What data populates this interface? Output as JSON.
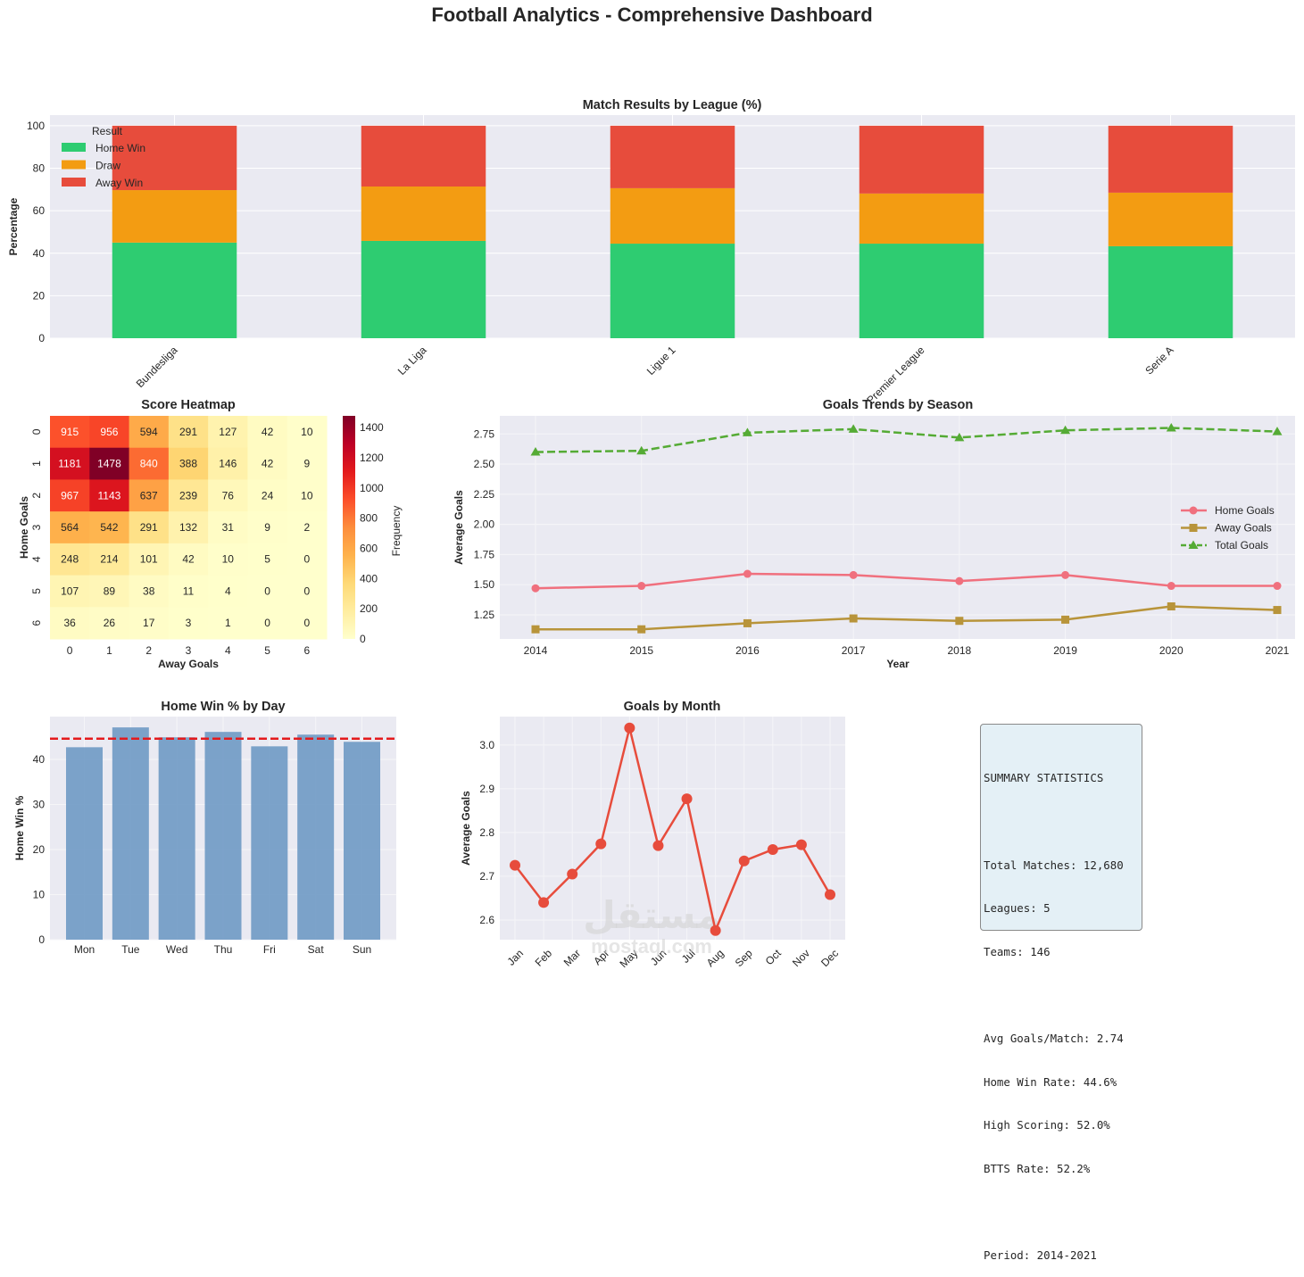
{
  "suptitle": "Football Analytics - Comprehensive Dashboard",
  "chart_data": [
    {
      "id": "league_results",
      "type": "bar",
      "stacked": true,
      "title": "Match Results by League (%)",
      "xlabel": "",
      "ylabel": "Percentage",
      "ylim": [
        0,
        105
      ],
      "yticks": [
        0,
        20,
        40,
        60,
        80,
        100
      ],
      "categories": [
        "Bundesliga",
        "La Liga",
        "Ligue 1",
        "Premier League",
        "Serie A"
      ],
      "legend_title": "Result",
      "legend_position": "top-left",
      "grid": true,
      "series": [
        {
          "name": "Home Win",
          "color": "#2ecc71",
          "values": [
            45.0,
            45.8,
            44.5,
            44.5,
            43.3
          ]
        },
        {
          "name": "Draw",
          "color": "#f39c12",
          "values": [
            24.7,
            25.6,
            26.1,
            23.6,
            25.2
          ]
        },
        {
          "name": "Away Win",
          "color": "#e74c3c",
          "values": [
            30.3,
            28.6,
            29.4,
            31.9,
            31.5
          ]
        }
      ]
    },
    {
      "id": "score_heatmap",
      "type": "heatmap",
      "title": "Score Heatmap",
      "xlabel": "Away Goals",
      "ylabel": "Home Goals",
      "x": [
        0,
        1,
        2,
        3,
        4,
        5,
        6
      ],
      "y": [
        0,
        1,
        2,
        3,
        4,
        5,
        6
      ],
      "colorbar_label": "Frequency",
      "colorbar_ticks": [
        0,
        200,
        400,
        600,
        800,
        1000,
        1200,
        1400
      ],
      "vmin": 0,
      "vmax": 1478,
      "colormap": "YlOrRd",
      "values": [
        [
          915,
          956,
          594,
          291,
          127,
          42,
          10
        ],
        [
          1181,
          1478,
          840,
          388,
          146,
          42,
          9
        ],
        [
          967,
          1143,
          637,
          239,
          76,
          24,
          10
        ],
        [
          564,
          542,
          291,
          132,
          31,
          9,
          2
        ],
        [
          248,
          214,
          101,
          42,
          10,
          5,
          0
        ],
        [
          107,
          89,
          38,
          11,
          4,
          0,
          0
        ],
        [
          36,
          26,
          17,
          3,
          1,
          0,
          0
        ]
      ]
    },
    {
      "id": "goals_trends",
      "type": "line",
      "title": "Goals Trends by Season",
      "xlabel": "Year",
      "ylabel": "Average Goals",
      "x": [
        2014,
        2015,
        2016,
        2017,
        2018,
        2019,
        2020,
        2021
      ],
      "ylim": [
        1.05,
        2.9
      ],
      "yticks": [
        1.25,
        1.5,
        1.75,
        2.0,
        2.25,
        2.5,
        2.75
      ],
      "ytick_labels": [
        "1.25",
        "1.50",
        "1.75",
        "2.00",
        "2.25",
        "2.50",
        "2.75"
      ],
      "legend_position": "center-right",
      "grid": true,
      "series": [
        {
          "name": "Home Goals",
          "color": "#f0707e",
          "marker": "circle",
          "dash": "solid",
          "values": [
            1.47,
            1.49,
            1.59,
            1.58,
            1.53,
            1.58,
            1.49,
            1.49
          ]
        },
        {
          "name": "Away Goals",
          "color": "#b8943a",
          "marker": "square",
          "dash": "solid",
          "values": [
            1.13,
            1.13,
            1.18,
            1.22,
            1.2,
            1.21,
            1.32,
            1.29
          ]
        },
        {
          "name": "Total Goals",
          "color": "#55ab35",
          "marker": "triangle",
          "dash": "dashed",
          "values": [
            2.6,
            2.61,
            2.76,
            2.79,
            2.72,
            2.78,
            2.8,
            2.77
          ]
        }
      ]
    },
    {
      "id": "home_win_by_day",
      "type": "bar",
      "title": "Home Win % by Day",
      "xlabel": "",
      "ylabel": "Home Win %",
      "categories": [
        "Mon",
        "Tue",
        "Wed",
        "Thu",
        "Fri",
        "Sat",
        "Sun"
      ],
      "values": [
        42.7,
        47.1,
        44.9,
        46.1,
        42.9,
        45.5,
        43.9
      ],
      "color": "#6f9ac4",
      "reference_line": {
        "value": 44.6,
        "color": "#e41a1c",
        "style": "dashed"
      },
      "ylim": [
        0,
        49.5
      ],
      "yticks": [
        0,
        10,
        20,
        30,
        40
      ],
      "grid": true
    },
    {
      "id": "goals_by_month",
      "type": "line",
      "title": "Goals by Month",
      "xlabel": "",
      "ylabel": "Average Goals",
      "categories": [
        "Jan",
        "Feb",
        "Mar",
        "Apr",
        "May",
        "Jun",
        "Jul",
        "Aug",
        "Sep",
        "Oct",
        "Nov",
        "Dec"
      ],
      "values": [
        2.725,
        2.64,
        2.705,
        2.774,
        3.039,
        2.77,
        2.877,
        2.576,
        2.735,
        2.761,
        2.772,
        2.658
      ],
      "color": "#e74c3c",
      "marker": "circle",
      "ylim": [
        2.555,
        3.065
      ],
      "yticks": [
        2.6,
        2.7,
        2.8,
        2.9,
        3.0
      ],
      "ytick_labels": [
        "2.6",
        "2.7",
        "2.8",
        "2.9",
        "3.0"
      ],
      "grid": true
    }
  ],
  "watermark": {
    "arabic": "مستقل",
    "latin": "mostaql.com"
  },
  "summary": {
    "title": "SUMMARY STATISTICS",
    "lines": [
      "Total Matches: 12,680",
      "Leagues: 5",
      "Teams: 146",
      "",
      "Avg Goals/Match: 2.74",
      "Home Win Rate: 44.6%",
      "High Scoring: 52.0%",
      "BTTS Rate: 52.2%",
      "",
      "Period: 2014-2021"
    ]
  }
}
